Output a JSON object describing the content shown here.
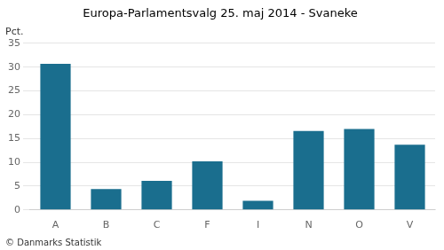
{
  "chart_data": {
    "type": "bar",
    "title": "Europa-Parlamentsvalg 25. maj 2014 - Svaneke",
    "ylabel": "Pct.",
    "footer": "© Danmarks Statistik",
    "categories": [
      "A",
      "B",
      "C",
      "F",
      "I",
      "N",
      "O",
      "V"
    ],
    "values": [
      30.7,
      4.4,
      6.1,
      10.2,
      1.9,
      16.6,
      17.0,
      13.7
    ],
    "color": "#1a6e8e",
    "ylim": [
      0,
      35
    ],
    "yticks": [
      0,
      5,
      10,
      15,
      20,
      25,
      30,
      35
    ],
    "grid": true
  }
}
